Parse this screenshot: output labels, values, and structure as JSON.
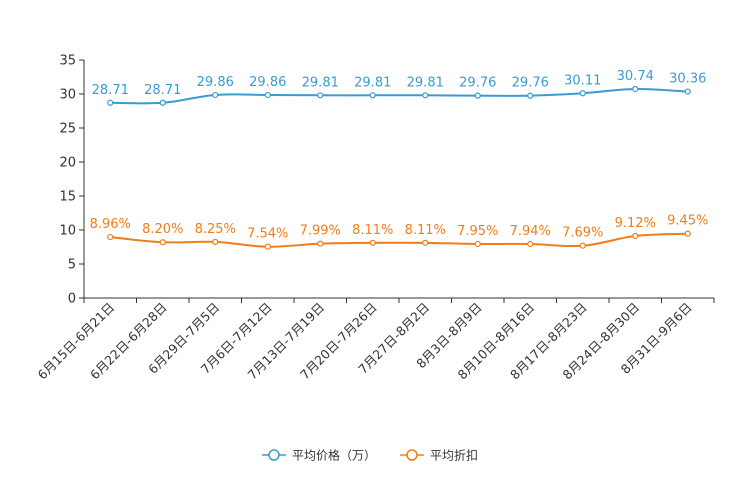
{
  "chart_data": {
    "type": "line",
    "title": "",
    "xlabel": "",
    "ylabel": "",
    "ylim": [
      0,
      35
    ],
    "yticks": [
      0,
      5,
      10,
      15,
      20,
      25,
      30,
      35
    ],
    "grid": false,
    "legend_position": "bottom-center",
    "categories": [
      "6月15日-6月21日",
      "6月22日-6月28日",
      "6月29日-7月5日",
      "7月6日-7月12日",
      "7月13日-7月19日",
      "7月20日-7月26日",
      "7月27日-8月2日",
      "8月3日-8月9日",
      "8月10日-8月16日",
      "8月17日-8月23日",
      "8月24日-8月30日",
      "8月31日-9月6日"
    ],
    "series": [
      {
        "name": "平均价格（万）",
        "color": "#3a9bd0",
        "values": [
          28.71,
          28.71,
          29.86,
          29.86,
          29.81,
          29.81,
          29.81,
          29.76,
          29.76,
          30.11,
          30.74,
          30.36
        ],
        "labels": [
          "28.71",
          "28.71",
          "29.86",
          "29.86",
          "29.81",
          "29.81",
          "29.81",
          "29.76",
          "29.76",
          "30.11",
          "30.74",
          "30.36"
        ]
      },
      {
        "name": "平均折扣",
        "color": "#f07d1a",
        "values": [
          8.96,
          8.2,
          8.25,
          7.54,
          7.99,
          8.11,
          8.11,
          7.95,
          7.94,
          7.69,
          9.12,
          9.45
        ],
        "labels": [
          "8.96%",
          "8.20%",
          "8.25%",
          "7.54%",
          "7.99%",
          "8.11%",
          "8.11%",
          "7.95%",
          "7.94%",
          "7.69%",
          "9.12%",
          "9.45%"
        ]
      }
    ]
  }
}
